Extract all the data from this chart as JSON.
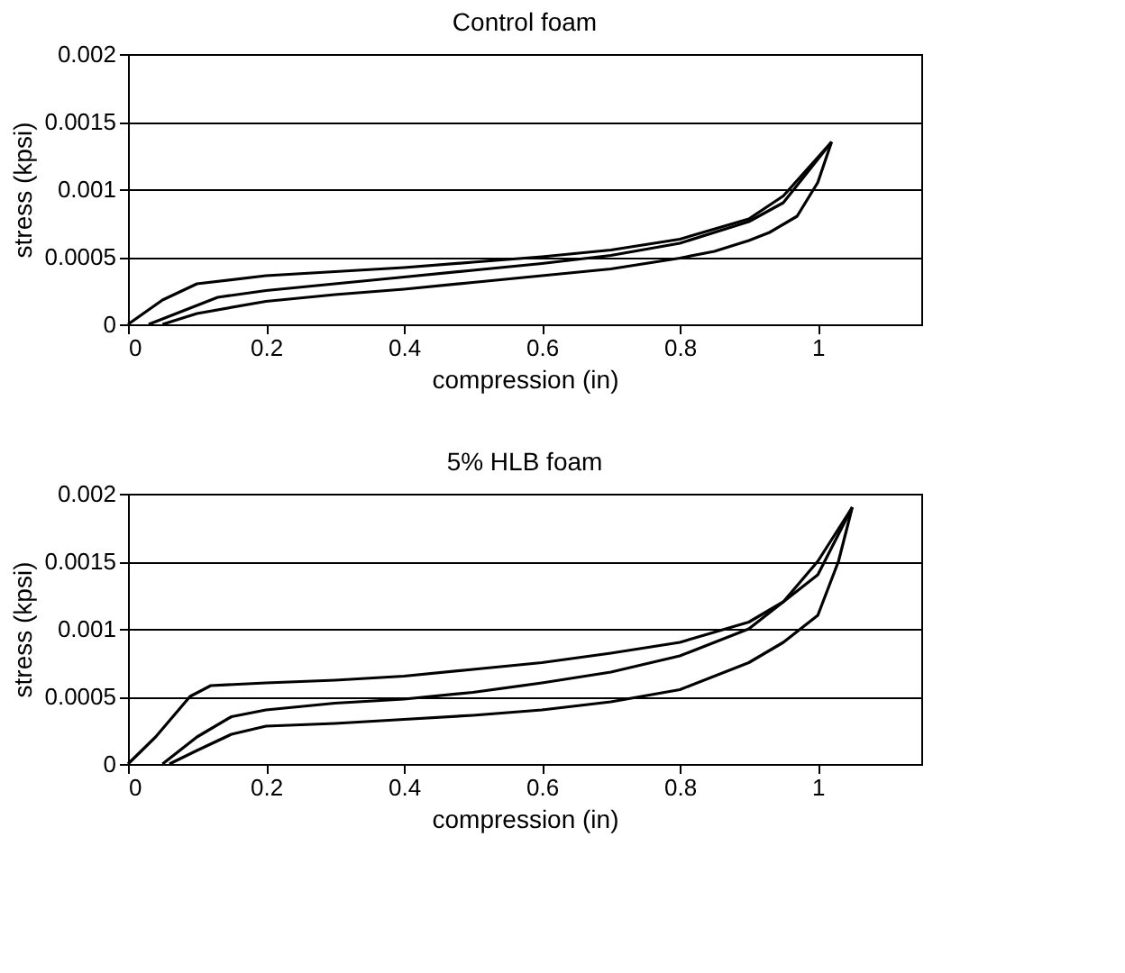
{
  "chart_data": [
    {
      "type": "line",
      "title": "Control foam",
      "xlabel": "compression (in)",
      "ylabel": "stress (kpsi)",
      "xlim": [
        0,
        1.15
      ],
      "xticks": [
        0,
        0.2,
        0.4,
        0.6,
        0.8,
        1
      ],
      "ylim": [
        0,
        0.002
      ],
      "yticks": [
        0,
        0.0005,
        0.001,
        0.0015,
        0.002
      ],
      "grid": "y",
      "legend": false,
      "line_style": "solid",
      "marker": "none",
      "series": [
        {
          "color": "#000000",
          "x": [
            0,
            0.05,
            0.1,
            0.2,
            0.3,
            0.4,
            0.5,
            0.6,
            0.7,
            0.8,
            0.9,
            0.95,
            1.02
          ],
          "values": [
            0,
            0.00018,
            0.0003,
            0.00036,
            0.00039,
            0.00042,
            0.00046,
            0.0005,
            0.00055,
            0.00063,
            0.00078,
            0.00095,
            0.00135
          ]
        },
        {
          "color": "#000000",
          "x": [
            0.03,
            0.08,
            0.13,
            0.2,
            0.3,
            0.4,
            0.5,
            0.6,
            0.7,
            0.8,
            0.9,
            0.95,
            1.02
          ],
          "values": [
            0,
            0.0001,
            0.0002,
            0.00025,
            0.0003,
            0.00035,
            0.0004,
            0.00045,
            0.00051,
            0.0006,
            0.00076,
            0.0009,
            0.00135
          ]
        },
        {
          "color": "#000000",
          "x": [
            1.02,
            1.0,
            0.97,
            0.93,
            0.9,
            0.85,
            0.8,
            0.7,
            0.6,
            0.5,
            0.4,
            0.3,
            0.2,
            0.1,
            0.05
          ],
          "values": [
            0.00135,
            0.00105,
            0.0008,
            0.00068,
            0.00062,
            0.00054,
            0.00049,
            0.00041,
            0.00036,
            0.00031,
            0.00026,
            0.00022,
            0.00017,
            8e-05,
            0
          ]
        }
      ]
    },
    {
      "type": "line",
      "title": "5% HLB foam",
      "xlabel": "compression (in)",
      "ylabel": "stress (kpsi)",
      "xlim": [
        0,
        1.15
      ],
      "xticks": [
        0,
        0.2,
        0.4,
        0.6,
        0.8,
        1
      ],
      "ylim": [
        0,
        0.002
      ],
      "yticks": [
        0,
        0.0005,
        0.001,
        0.0015,
        0.002
      ],
      "grid": "y",
      "legend": false,
      "line_style": "solid",
      "marker": "none",
      "series": [
        {
          "color": "#000000",
          "x": [
            0,
            0.04,
            0.09,
            0.12,
            0.2,
            0.3,
            0.4,
            0.5,
            0.6,
            0.7,
            0.8,
            0.9,
            0.95,
            1.0,
            1.05
          ],
          "values": [
            0,
            0.0002,
            0.0005,
            0.00058,
            0.0006,
            0.00062,
            0.00065,
            0.0007,
            0.00075,
            0.00082,
            0.0009,
            0.00105,
            0.0012,
            0.0014,
            0.0019
          ]
        },
        {
          "color": "#000000",
          "x": [
            0.05,
            0.1,
            0.15,
            0.2,
            0.3,
            0.4,
            0.5,
            0.6,
            0.7,
            0.8,
            0.9,
            0.95,
            1.0,
            1.05
          ],
          "values": [
            0,
            0.0002,
            0.00035,
            0.0004,
            0.00045,
            0.00048,
            0.00053,
            0.0006,
            0.00068,
            0.0008,
            0.001,
            0.0012,
            0.0015,
            0.0019
          ]
        },
        {
          "color": "#000000",
          "x": [
            1.05,
            1.03,
            1.0,
            0.95,
            0.9,
            0.8,
            0.7,
            0.6,
            0.5,
            0.4,
            0.3,
            0.2,
            0.15,
            0.1,
            0.06
          ],
          "values": [
            0.0019,
            0.0015,
            0.0011,
            0.0009,
            0.00075,
            0.00055,
            0.00046,
            0.0004,
            0.00036,
            0.00033,
            0.0003,
            0.00028,
            0.00022,
            0.0001,
            0
          ]
        }
      ]
    }
  ]
}
